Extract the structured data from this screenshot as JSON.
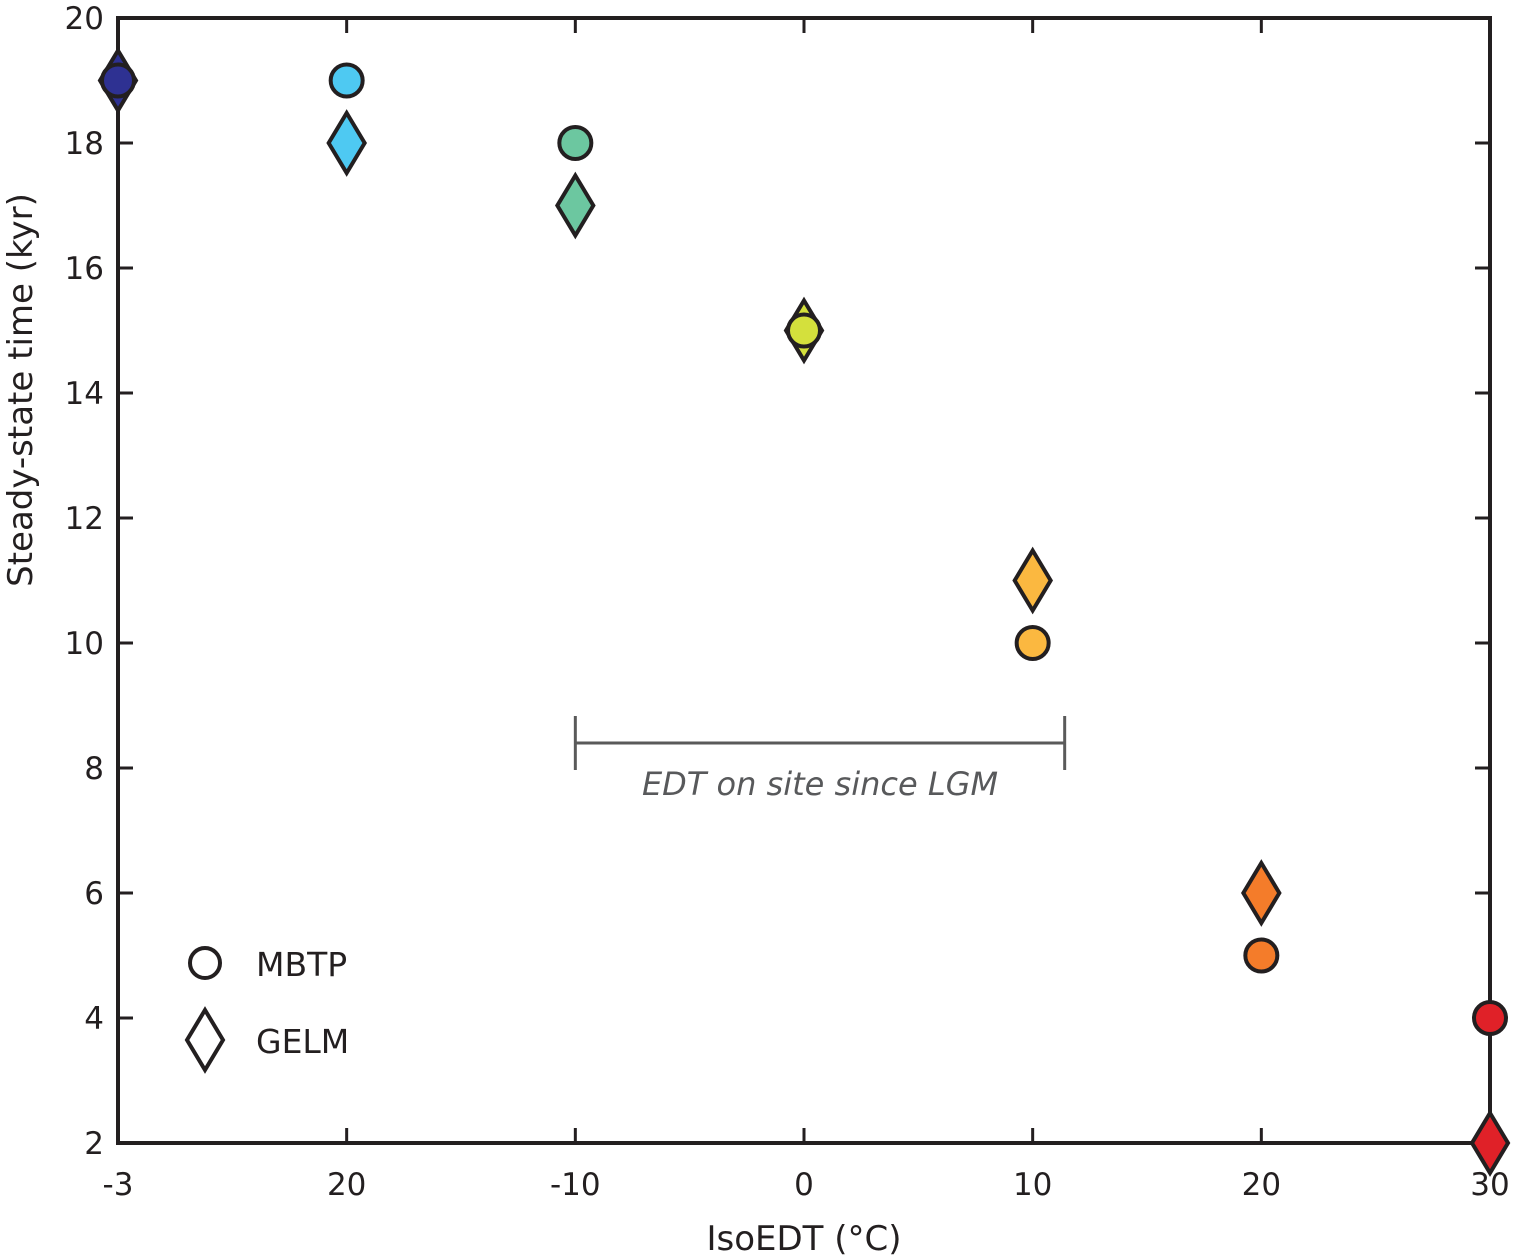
{
  "chart_data": {
    "type": "scatter",
    "title": "",
    "xlabel": "IsoEDT (°C)",
    "ylabel": "Steady-state time (kyr)",
    "x_tick_labels": [
      "-3",
      "20",
      "-10",
      "0",
      "10",
      "20",
      "30"
    ],
    "x_categorical": true,
    "y_ticks": [
      2,
      4,
      6,
      8,
      10,
      12,
      14,
      16,
      18,
      20
    ],
    "y_tick_labels": [
      "2",
      "4",
      "6",
      "8",
      "10",
      "12",
      "14",
      "16",
      "18",
      "20"
    ],
    "ylim": [
      2,
      20
    ],
    "grid": false,
    "tick_direction": "in",
    "colors": [
      "#2e3192",
      "#4ec9f2",
      "#6cc7a0",
      "#d4e03c",
      "#fbb840",
      "#f47c2a",
      "#e02128"
    ],
    "series": [
      {
        "name": "MBTP",
        "marker": "circle",
        "values": [
          19,
          19,
          18,
          15,
          10,
          5,
          4
        ]
      },
      {
        "name": "GELM",
        "marker": "diamond",
        "values": [
          19,
          18,
          17,
          15,
          11,
          6,
          2
        ]
      }
    ],
    "legend": {
      "position": "bottom-left",
      "entries": [
        {
          "label": "MBTP",
          "marker": "circle"
        },
        {
          "label": "GELM",
          "marker": "diamond"
        }
      ]
    },
    "annotations": [
      {
        "type": "range-bracket",
        "text": "EDT on site since LGM",
        "x_start_index": 2,
        "x_end_index": 4.14,
        "y": 8.4,
        "color": "#5a5a5a"
      }
    ]
  }
}
